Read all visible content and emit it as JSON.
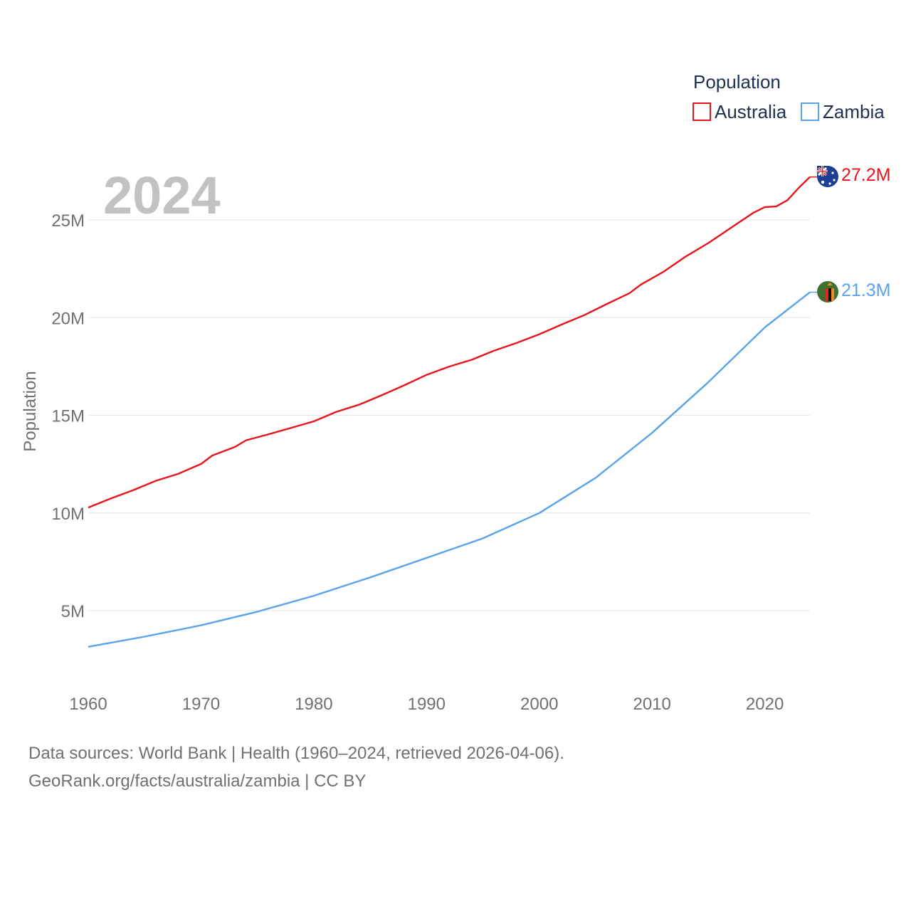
{
  "chart_data": {
    "type": "line",
    "title": "",
    "year_label": "2024",
    "ylabel": "Population",
    "xlabel": "",
    "xlim": [
      1960,
      2024
    ],
    "ylim": [
      0,
      28000000
    ],
    "x_ticks": [
      1960,
      1970,
      1980,
      1990,
      2000,
      2010,
      2020
    ],
    "y_ticks": [
      {
        "value": 5000000,
        "label": "5M"
      },
      {
        "value": 10000000,
        "label": "10M"
      },
      {
        "value": 15000000,
        "label": "15M"
      },
      {
        "value": 20000000,
        "label": "20M"
      },
      {
        "value": 25000000,
        "label": "25M"
      }
    ],
    "grid": true,
    "legend": {
      "title": "Population",
      "position": "top-right"
    },
    "series": [
      {
        "name": "Australia",
        "color": "#e8141c",
        "end_label": "27.2M",
        "flag_icon": "australia-flag-icon",
        "points": [
          [
            1960,
            10.28
          ],
          [
            1962,
            10.74
          ],
          [
            1964,
            11.17
          ],
          [
            1966,
            11.65
          ],
          [
            1968,
            12.01
          ],
          [
            1970,
            12.51
          ],
          [
            1971,
            12.94
          ],
          [
            1973,
            13.38
          ],
          [
            1974,
            13.72
          ],
          [
            1976,
            14.03
          ],
          [
            1978,
            14.36
          ],
          [
            1980,
            14.69
          ],
          [
            1982,
            15.18
          ],
          [
            1984,
            15.54
          ],
          [
            1986,
            16.02
          ],
          [
            1988,
            16.53
          ],
          [
            1990,
            17.07
          ],
          [
            1992,
            17.49
          ],
          [
            1994,
            17.84
          ],
          [
            1996,
            18.31
          ],
          [
            1998,
            18.71
          ],
          [
            2000,
            19.15
          ],
          [
            2002,
            19.65
          ],
          [
            2004,
            20.13
          ],
          [
            2006,
            20.7
          ],
          [
            2008,
            21.25
          ],
          [
            2009,
            21.69
          ],
          [
            2011,
            22.34
          ],
          [
            2013,
            23.13
          ],
          [
            2015,
            23.82
          ],
          [
            2017,
            24.6
          ],
          [
            2019,
            25.37
          ],
          [
            2020,
            25.66
          ],
          [
            2021,
            25.69
          ],
          [
            2022,
            26.01
          ],
          [
            2023,
            26.64
          ],
          [
            2024,
            27.2
          ]
        ]
      },
      {
        "name": "Zambia",
        "color": "#5ba3e8",
        "end_label": "21.3M",
        "flag_icon": "zambia-flag-icon",
        "points": [
          [
            1960,
            3.15
          ],
          [
            1965,
            3.67
          ],
          [
            1970,
            4.25
          ],
          [
            1975,
            4.95
          ],
          [
            1980,
            5.76
          ],
          [
            1985,
            6.7
          ],
          [
            1990,
            7.7
          ],
          [
            1995,
            8.7
          ],
          [
            2000,
            10.0
          ],
          [
            2005,
            11.8
          ],
          [
            2010,
            14.1
          ],
          [
            2015,
            16.7
          ],
          [
            2020,
            19.5
          ],
          [
            2024,
            21.3
          ]
        ]
      }
    ]
  },
  "footer": {
    "line1": "Data sources: World Bank | Health (1960–2024, retrieved 2026-04-06).",
    "line2": "GeoRank.org/facts/australia/zambia | CC BY"
  }
}
